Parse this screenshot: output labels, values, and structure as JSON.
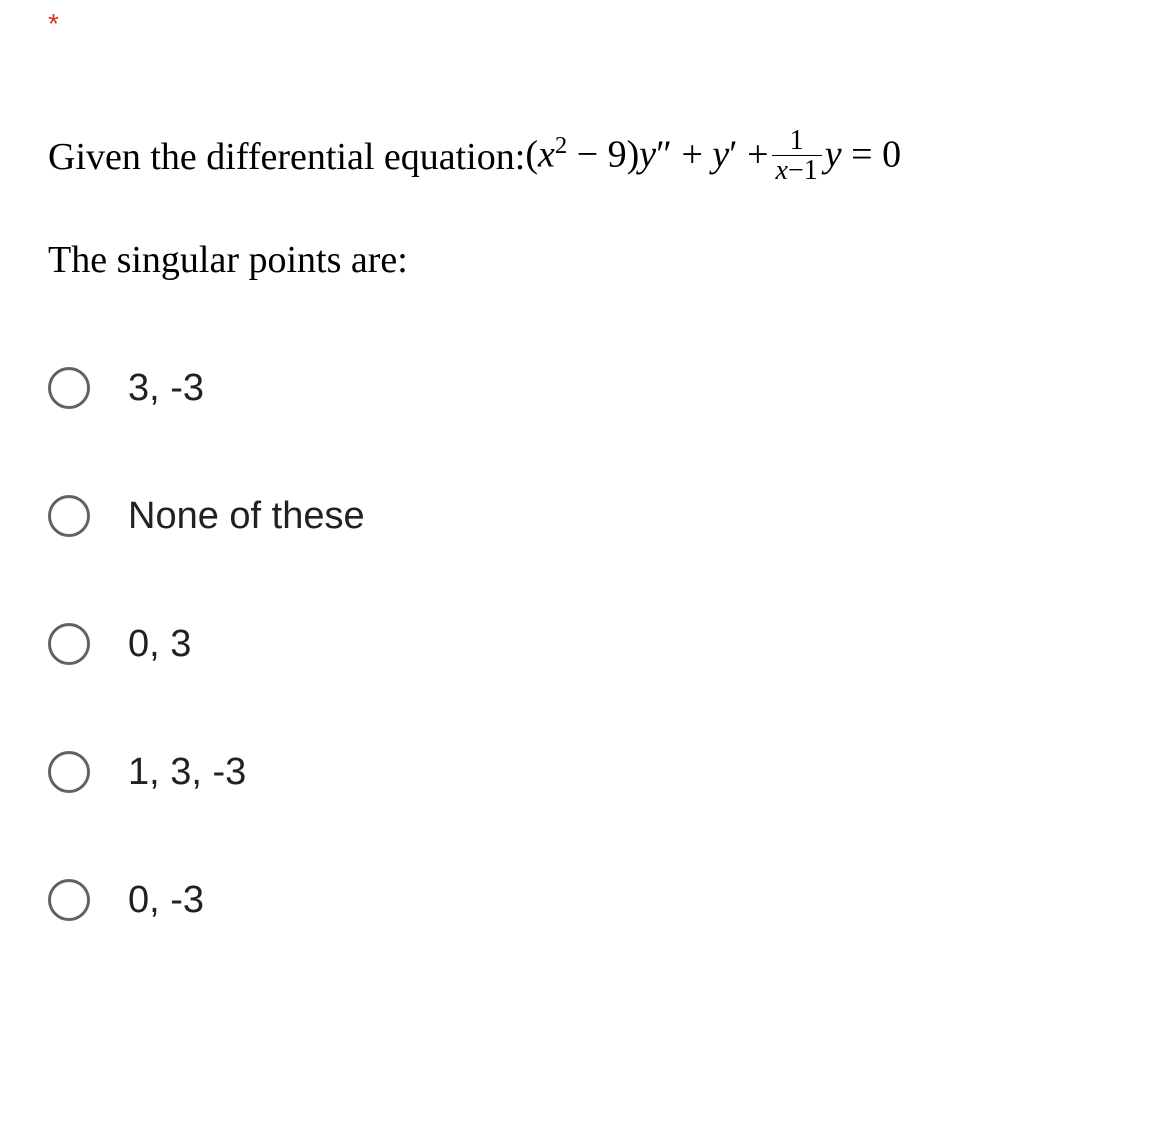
{
  "required_marker": "*",
  "question": {
    "lead_text": "Given the differential equation:  ",
    "equation_parts": {
      "open": "(",
      "x": "x",
      "sq": "2",
      "minus9": " − 9)",
      "y2": "y",
      "pp": "″",
      "plus1": " + ",
      "y1": "y",
      "p": "′",
      "plus2": " +",
      "frac_num": "1",
      "frac_den_x": "x",
      "frac_den_minus1": "−1",
      "y0": "y",
      "eq0": " = 0"
    },
    "sub_text": "The singular points are:"
  },
  "options": [
    {
      "label": "3, -3"
    },
    {
      "label": "None of these"
    },
    {
      "label": "0, 3"
    },
    {
      "label": "1, 3, -3"
    },
    {
      "label": "0, -3"
    }
  ],
  "colors": {
    "required": "#d93025",
    "radio_border": "#5f6368",
    "text": "#202124",
    "background": "#ffffff"
  }
}
